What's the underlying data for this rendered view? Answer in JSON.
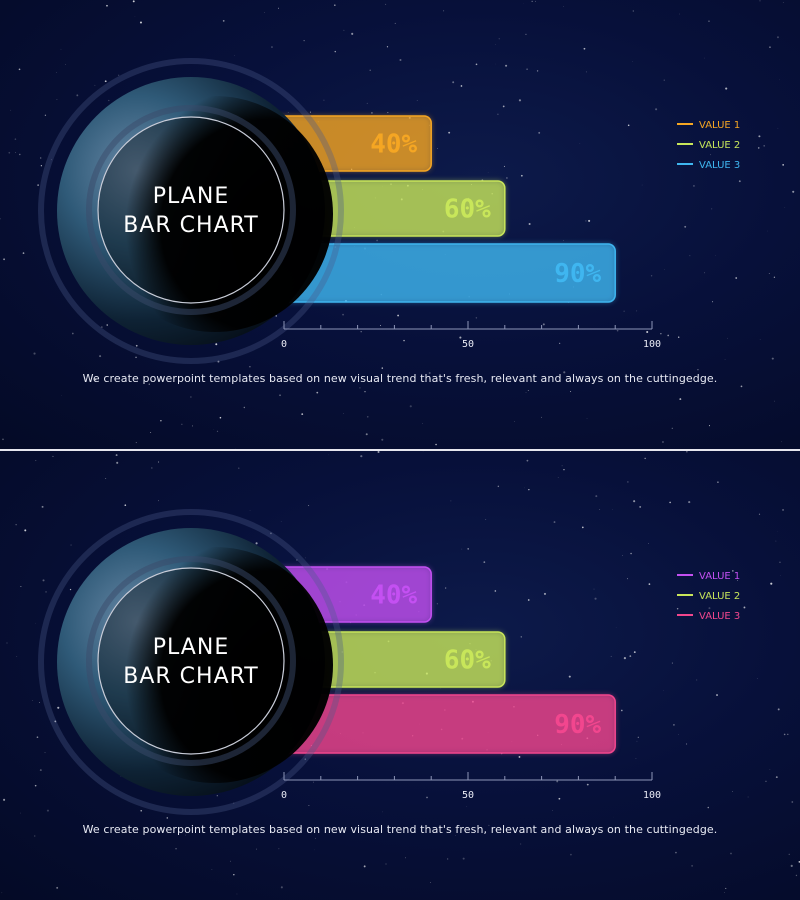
{
  "chart_data": [
    {
      "type": "bar",
      "orientation": "horizontal",
      "title": "PLANE BAR CHART",
      "categories": [
        "VALUE 1",
        "VALUE 2",
        "VALUE 3"
      ],
      "values": [
        40,
        60,
        90
      ],
      "value_labels": [
        "40%",
        "60%",
        "90%"
      ],
      "colors": [
        "#f5a623",
        "#c8e65a",
        "#3fb6f0"
      ],
      "xlim": [
        0,
        100
      ],
      "x_ticks": [
        "0",
        "50",
        "100"
      ],
      "grid": false,
      "legend": "top-right",
      "caption": "We create powerpoint templates based on new visual trend that's fresh, relevant and always on the cuttingedge."
    },
    {
      "type": "bar",
      "orientation": "horizontal",
      "title": "PLANE BAR CHART",
      "categories": [
        "VALUE 1",
        "VALUE 2",
        "VALUE 3"
      ],
      "values": [
        40,
        60,
        90
      ],
      "value_labels": [
        "40%",
        "60%",
        "90%"
      ],
      "colors": [
        "#c450f2",
        "#c8e65a",
        "#f2468e"
      ],
      "xlim": [
        0,
        100
      ],
      "x_ticks": [
        "0",
        "50",
        "100"
      ],
      "grid": false,
      "legend": "top-right",
      "caption": "We create powerpoint templates based on new visual trend that's fresh, relevant and always on the cuttingedge."
    }
  ]
}
